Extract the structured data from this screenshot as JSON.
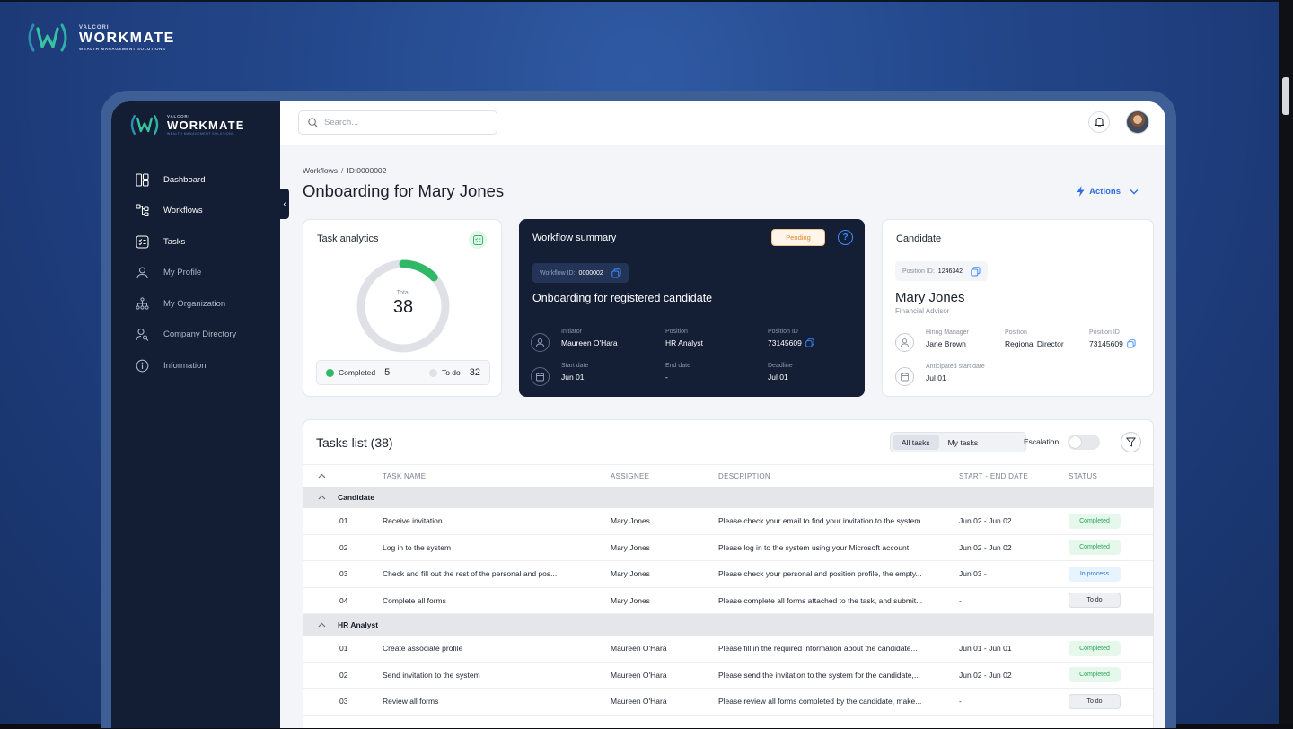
{
  "brand": {
    "small": "VALCORI",
    "name": "WORKMATE",
    "tagline": "WEALTH MANAGEMENT SOLUTIONS"
  },
  "sidebar": {
    "items": [
      {
        "label": "Dashboard",
        "icon": "dashboard-icon"
      },
      {
        "label": "Workflows",
        "icon": "workflow-icon"
      },
      {
        "label": "Tasks",
        "icon": "tasks-icon"
      },
      {
        "label": "My Profile",
        "icon": "user-icon"
      },
      {
        "label": "My Organization",
        "icon": "org-chart-icon"
      },
      {
        "label": "Company Directory",
        "icon": "directory-icon"
      },
      {
        "label": "Information",
        "icon": "info-icon"
      }
    ]
  },
  "search": {
    "placeholder": "Search..."
  },
  "breadcrumb": {
    "root": "Workflows",
    "sep": "/",
    "current": "ID:0000002"
  },
  "page": {
    "title": "Onboarding for Mary Jones",
    "actions_label": "Actions"
  },
  "analytics": {
    "title": "Task analytics",
    "total_label": "Total",
    "total": "38",
    "completed_label": "Completed",
    "completed": "5",
    "todo_label": "To do",
    "todo": "32",
    "completed_fraction": 0.13,
    "colors": {
      "completed": "#2fb866",
      "todo": "#dfe1e6"
    }
  },
  "summary": {
    "title": "Workflow summary",
    "status": "Pending",
    "id_label": "Workflow ID:",
    "id_value": "0000002",
    "heading": "Onboarding for registered candidate",
    "initiator_label": "Initiator",
    "initiator": "Maureen O'Hara",
    "position_label": "Position",
    "position": "HR Analyst",
    "position_id_label": "Position ID",
    "position_id": "73145609",
    "start_label": "Start date",
    "start": "Jun 01",
    "end_label": "End date",
    "end": "-",
    "deadline_label": "Deadline",
    "deadline": "Jul 01"
  },
  "candidate": {
    "title": "Candidate",
    "position_id_label": "Position ID:",
    "position_id_chip": "1246342",
    "name": "Mary Jones",
    "role": "Financial Advisor",
    "hiring_manager_label": "Hiring Manager",
    "hiring_manager": "Jane Brown",
    "position_label": "Position",
    "position": "Regional Director",
    "position_id_label2": "Position ID",
    "position_id": "73145609",
    "start_label": "Anticipated start date",
    "start": "Jul 01"
  },
  "tasks": {
    "title": "Tasks list (38)",
    "filter_all": "All tasks",
    "filter_mine": "My tasks",
    "escalation_label": "Escalation",
    "columns": [
      "TASK NAME",
      "ASSIGNEE",
      "DESCRIPTION",
      "START - END DATE",
      "STATUS"
    ],
    "groups": [
      {
        "name": "Candidate",
        "rows": [
          {
            "num": "01",
            "name": "Receive invitation",
            "assignee": "Mary Jones",
            "desc": "Please check your email to find your invitation to the system",
            "date": "Jun 02 - Jun 02",
            "status": "Completed",
            "kind": "completed"
          },
          {
            "num": "02",
            "name": "Log in to the system",
            "assignee": "Mary Jones",
            "desc": "Please log in to the system using your Microsoft account",
            "date": "Jun 02 - Jun 02",
            "status": "Completed",
            "kind": "completed"
          },
          {
            "num": "03",
            "name": "Check and fill out the rest of the personal and pos...",
            "assignee": "Mary Jones",
            "desc": "Please check your personal and position profile, the empty...",
            "date": "Jun 03 -",
            "status": "In process",
            "kind": "inprocess"
          },
          {
            "num": "04",
            "name": "Complete all forms",
            "assignee": "Mary Jones",
            "desc": "Please complete all forms attached to the task, and submit...",
            "date": "-",
            "status": "To do",
            "kind": "todo"
          }
        ]
      },
      {
        "name": "HR Analyst",
        "rows": [
          {
            "num": "01",
            "name": "Create associate profile",
            "assignee": "Maureen O'Hara",
            "desc": "Please fill in the required information about the candidate...",
            "date": "Jun 01 - Jun 01",
            "status": "Completed",
            "kind": "completed"
          },
          {
            "num": "02",
            "name": "Send invitation to the system",
            "assignee": "Maureen O'Hara",
            "desc": "Please send the invitation to the system for the candidate,...",
            "date": "Jun 02 - Jun 02",
            "status": "Completed",
            "kind": "completed"
          },
          {
            "num": "03",
            "name": "Review all forms",
            "assignee": "Maureen O'Hara",
            "desc": "Please review all forms completed by the candidate, make...",
            "date": "-",
            "status": "To do",
            "kind": "todo"
          }
        ]
      }
    ]
  }
}
